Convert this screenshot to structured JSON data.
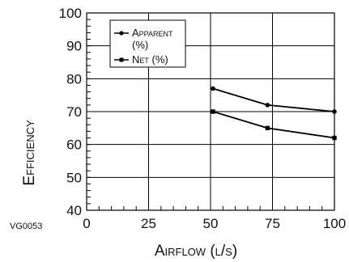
{
  "chart_data": {
    "type": "line",
    "title": "",
    "xlabel": "Airflow (l/s)",
    "ylabel": "Efficiency",
    "xlim": [
      0,
      100
    ],
    "ylim": [
      40,
      100
    ],
    "xticks": [
      "0",
      "25",
      "50",
      "75",
      "100"
    ],
    "yticks": [
      "40",
      "50",
      "60",
      "70",
      "80",
      "90",
      "100"
    ],
    "grid": true,
    "legend_position": "top-left",
    "series": [
      {
        "name": "Apparent (%)",
        "marker": "circle",
        "color": "#000000",
        "points": [
          {
            "x": 51,
            "y": 77
          },
          {
            "x": 73,
            "y": 72
          },
          {
            "x": 100,
            "y": 70
          }
        ]
      },
      {
        "name": "Net (%)",
        "marker": "square",
        "color": "#000000",
        "points": [
          {
            "x": 51,
            "y": 70
          },
          {
            "x": 73,
            "y": 65
          },
          {
            "x": 100,
            "y": 62
          }
        ]
      }
    ],
    "legend_labels": {
      "apparent_line1": "Apparent",
      "apparent_line2": "(%)",
      "net": "Net (%)"
    },
    "figure_code": "VG0053"
  }
}
